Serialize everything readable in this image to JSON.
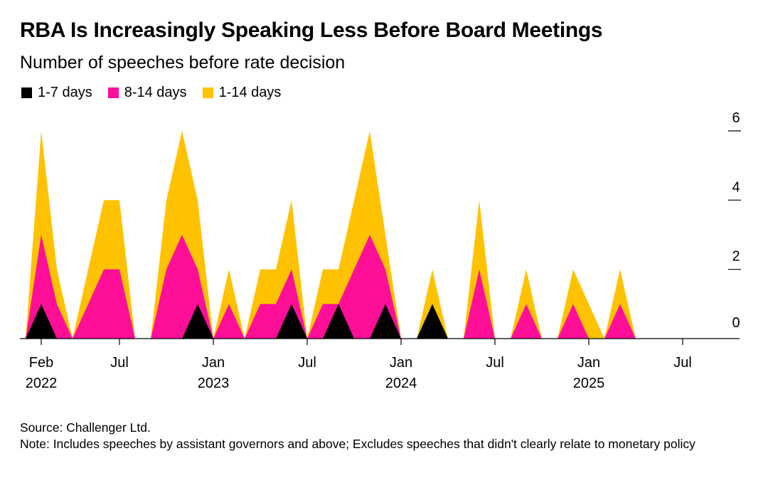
{
  "title": "RBA Is Increasingly Speaking Less Before Board Meetings",
  "subtitle": "Number of speeches before rate decision",
  "legend": [
    {
      "label": "1-7 days",
      "color": "#000000"
    },
    {
      "label": "8-14 days",
      "color": "#ff0e98"
    },
    {
      "label": "1-14 days",
      "color": "#ffc200"
    }
  ],
  "footer": {
    "source": "Source: Challenger Ltd.",
    "note": "Note: Includes speeches by assistant governors and above; Excludes speeches that didn't clearly relate to monetary policy"
  },
  "chart_data": {
    "type": "area",
    "title": "RBA Is Increasingly Speaking Less Before Board Meetings",
    "subtitle": "Number of speeches before rate decision",
    "x": [
      "2022-01",
      "2022-02",
      "2022-03",
      "2022-04",
      "2022-05",
      "2022-06",
      "2022-07",
      "2022-08",
      "2022-09",
      "2022-10",
      "2022-11",
      "2022-12",
      "2023-01",
      "2023-02",
      "2023-03",
      "2023-04",
      "2023-05",
      "2023-06",
      "2023-07",
      "2023-08",
      "2023-09",
      "2023-10",
      "2023-11",
      "2023-12",
      "2024-01",
      "2024-02",
      "2024-03",
      "2024-04",
      "2024-05",
      "2024-06",
      "2024-07",
      "2024-08",
      "2024-09",
      "2024-10",
      "2024-11",
      "2024-12",
      "2025-01",
      "2025-02",
      "2025-03",
      "2025-04",
      "2025-05",
      "2025-06",
      "2025-07",
      "2025-08",
      "2025-09"
    ],
    "x_tick_labels": [
      {
        "at": "2022-02",
        "line1": "Feb",
        "line2": "2022"
      },
      {
        "at": "2022-07",
        "line1": "Jul",
        "line2": ""
      },
      {
        "at": "2023-01",
        "line1": "Jan",
        "line2": "2023"
      },
      {
        "at": "2023-07",
        "line1": "Jul",
        "line2": ""
      },
      {
        "at": "2024-01",
        "line1": "Jan",
        "line2": "2024"
      },
      {
        "at": "2024-07",
        "line1": "Jul",
        "line2": ""
      },
      {
        "at": "2025-01",
        "line1": "Jan",
        "line2": "2025"
      },
      {
        "at": "2025-07",
        "line1": "Jul",
        "line2": ""
      }
    ],
    "series": [
      {
        "name": "1-7 days",
        "color": "#000000",
        "values": [
          0,
          1,
          0,
          0,
          0,
          0,
          0,
          0,
          0,
          0,
          0,
          1,
          0,
          0,
          0,
          0,
          0,
          1,
          0,
          0,
          1,
          0,
          0,
          1,
          0,
          0,
          1,
          0,
          0,
          0,
          0,
          0,
          0,
          0,
          0,
          0,
          0,
          0,
          0,
          0,
          0,
          0,
          0,
          0,
          0
        ]
      },
      {
        "name": "8-14 days",
        "color": "#ff0e98",
        "values": [
          0,
          3,
          1,
          0,
          1,
          2,
          2,
          0,
          0,
          2,
          3,
          2,
          0,
          1,
          0,
          1,
          1,
          2,
          0,
          1,
          1,
          2,
          3,
          2,
          0,
          0,
          0,
          0,
          0,
          2,
          0,
          0,
          1,
          0,
          0,
          1,
          0,
          0,
          1,
          0,
          0,
          0,
          0,
          0,
          0
        ]
      },
      {
        "name": "1-14 days",
        "color": "#ffc200",
        "values": [
          0,
          6,
          2,
          0,
          2,
          4,
          4,
          0,
          0,
          4,
          6,
          4,
          0,
          2,
          0,
          2,
          2,
          4,
          0,
          2,
          2,
          4,
          6,
          3,
          0,
          0,
          2,
          0,
          0,
          4,
          0,
          0,
          2,
          0,
          0,
          2,
          1,
          0,
          2,
          0,
          0,
          0,
          0,
          0,
          0
        ]
      }
    ],
    "yticks": [
      0,
      2,
      4,
      6
    ],
    "ylim": [
      0,
      6
    ],
    "xlabel": "",
    "ylabel": "",
    "grid": false
  }
}
